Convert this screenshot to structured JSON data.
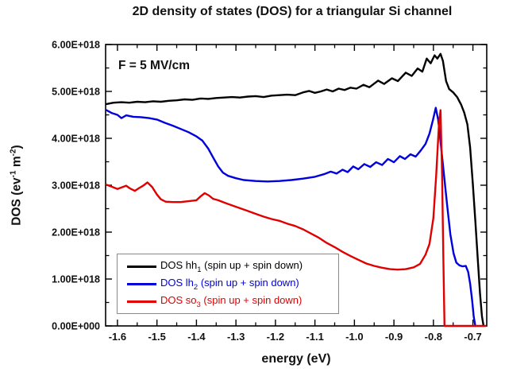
{
  "title": "2D density of states (DOS) for a triangular Si channel",
  "annotation": "F = 5 MV/cm",
  "y_axis_title_parts": {
    "p1": "DOS (ev",
    "sup1": "-1",
    "p2": " m",
    "sup2": "-2",
    "p3": ")"
  },
  "x_axis_title": "energy (eV)",
  "legend": {
    "items": [
      {
        "pre": "DOS hh",
        "sub": "1",
        "post": " (spin up + spin down)",
        "color": "#000000"
      },
      {
        "pre": "DOS lh",
        "sub": "2",
        "post": " (spin up + spin down)",
        "color": "#0000dd"
      },
      {
        "pre": "DOS so",
        "sub": "3",
        "post": " (spin up + spin down)",
        "color": "#e00000"
      }
    ]
  },
  "chart_data": {
    "type": "line",
    "title": "2D density of states (DOS) for a triangular Si channel",
    "xlabel": "energy (eV)",
    "ylabel": "DOS (ev^-1 m^-2)",
    "annotation": "F = 5 MV/cm",
    "grid": false,
    "legend_position": "lower-left-inside",
    "y_unit_scale": "1e18",
    "axes": {
      "x": {
        "min": -1.63,
        "max": -0.665,
        "majors": [
          -1.6,
          -1.5,
          -1.4,
          -1.3,
          -1.2,
          -1.1,
          -1.0,
          -0.9,
          -0.8,
          -0.7
        ],
        "tick_labels": [
          "-1.6",
          "-1.5",
          "-1.4",
          "-1.3",
          "-1.2",
          "-1.1",
          "-1.0",
          "-0.9",
          "-0.8",
          "-0.7"
        ],
        "minors": [
          -1.55,
          -1.45,
          -1.35,
          -1.25,
          -1.15,
          -1.05,
          -0.95,
          -0.85,
          -0.75
        ]
      },
      "y": {
        "min": 0,
        "max": 6,
        "majors": [
          0,
          1,
          2,
          3,
          4,
          5,
          6
        ],
        "tick_labels": [
          "0.00E+000",
          "1.00E+018",
          "2.00E+018",
          "3.00E+018",
          "4.00E+018",
          "5.00E+018",
          "6.00E+018"
        ],
        "minors": [
          0.5,
          1.5,
          2.5,
          3.5,
          4.5,
          5.5
        ]
      }
    },
    "series": [
      {
        "key": "hh1",
        "name": "DOS hh1 (spin up + spin down)",
        "color": "#000000",
        "x": [
          -1.628,
          -1.61,
          -1.59,
          -1.57,
          -1.55,
          -1.53,
          -1.51,
          -1.49,
          -1.47,
          -1.45,
          -1.43,
          -1.41,
          -1.39,
          -1.37,
          -1.35,
          -1.33,
          -1.31,
          -1.29,
          -1.27,
          -1.25,
          -1.23,
          -1.21,
          -1.19,
          -1.17,
          -1.15,
          -1.13,
          -1.115,
          -1.1,
          -1.085,
          -1.07,
          -1.055,
          -1.04,
          -1.025,
          -1.01,
          -0.995,
          -0.977,
          -0.962,
          -0.94,
          -0.925,
          -0.905,
          -0.89,
          -0.87,
          -0.855,
          -0.84,
          -0.828,
          -0.817,
          -0.807,
          -0.797,
          -0.79,
          -0.782,
          -0.776,
          -0.768,
          -0.76,
          -0.75,
          -0.74,
          -0.73,
          -0.722,
          -0.714,
          -0.707,
          -0.7,
          -0.694,
          -0.688,
          -0.682,
          -0.677,
          -0.673
        ],
        "y": [
          4.73,
          4.76,
          4.77,
          4.76,
          4.78,
          4.77,
          4.79,
          4.78,
          4.8,
          4.81,
          4.83,
          4.82,
          4.85,
          4.84,
          4.86,
          4.87,
          4.88,
          4.87,
          4.89,
          4.9,
          4.88,
          4.91,
          4.92,
          4.93,
          4.92,
          4.98,
          5.01,
          4.97,
          5.0,
          5.04,
          5.0,
          5.06,
          5.03,
          5.08,
          5.06,
          5.14,
          5.09,
          5.23,
          5.16,
          5.28,
          5.22,
          5.4,
          5.33,
          5.49,
          5.42,
          5.7,
          5.6,
          5.77,
          5.7,
          5.8,
          5.65,
          5.22,
          5.05,
          4.98,
          4.88,
          4.72,
          4.55,
          4.3,
          3.8,
          3.0,
          2.25,
          1.45,
          0.7,
          0.2,
          0.0
        ]
      },
      {
        "key": "lh2",
        "name": "DOS lh2 (spin up + spin down)",
        "color": "#0000dd",
        "x": [
          -1.628,
          -1.615,
          -1.6,
          -1.59,
          -1.578,
          -1.56,
          -1.54,
          -1.52,
          -1.5,
          -1.48,
          -1.46,
          -1.44,
          -1.42,
          -1.4,
          -1.385,
          -1.37,
          -1.357,
          -1.345,
          -1.333,
          -1.32,
          -1.3,
          -1.28,
          -1.25,
          -1.22,
          -1.19,
          -1.16,
          -1.13,
          -1.1,
          -1.075,
          -1.06,
          -1.045,
          -1.03,
          -1.017,
          -1.003,
          -0.99,
          -0.975,
          -0.96,
          -0.945,
          -0.93,
          -0.915,
          -0.9,
          -0.885,
          -0.872,
          -0.858,
          -0.845,
          -0.832,
          -0.82,
          -0.81,
          -0.801,
          -0.794,
          -0.788,
          -0.781,
          -0.773,
          -0.765,
          -0.757,
          -0.749,
          -0.742,
          -0.734,
          -0.726,
          -0.718,
          -0.712,
          -0.707,
          -0.702,
          -0.698,
          -0.694
        ],
        "y": [
          4.6,
          4.54,
          4.5,
          4.43,
          4.49,
          4.46,
          4.45,
          4.43,
          4.4,
          4.33,
          4.27,
          4.2,
          4.13,
          4.04,
          3.95,
          3.78,
          3.58,
          3.4,
          3.27,
          3.2,
          3.15,
          3.11,
          3.09,
          3.08,
          3.09,
          3.11,
          3.14,
          3.18,
          3.24,
          3.29,
          3.25,
          3.33,
          3.28,
          3.4,
          3.34,
          3.45,
          3.39,
          3.49,
          3.43,
          3.56,
          3.49,
          3.62,
          3.56,
          3.66,
          3.61,
          3.74,
          3.88,
          4.1,
          4.4,
          4.65,
          4.4,
          3.85,
          3.2,
          2.55,
          1.95,
          1.55,
          1.35,
          1.29,
          1.27,
          1.28,
          1.15,
          0.9,
          0.55,
          0.2,
          0.0
        ]
      },
      {
        "key": "so3",
        "name": "DOS so3 (spin up + spin down)",
        "color": "#e00000",
        "x": [
          -1.628,
          -1.615,
          -1.6,
          -1.59,
          -1.578,
          -1.568,
          -1.556,
          -1.545,
          -1.535,
          -1.524,
          -1.512,
          -1.5,
          -1.49,
          -1.478,
          -1.46,
          -1.44,
          -1.42,
          -1.4,
          -1.39,
          -1.379,
          -1.368,
          -1.358,
          -1.345,
          -1.33,
          -1.31,
          -1.29,
          -1.27,
          -1.25,
          -1.23,
          -1.21,
          -1.19,
          -1.17,
          -1.15,
          -1.13,
          -1.11,
          -1.09,
          -1.07,
          -1.05,
          -1.03,
          -1.01,
          -0.99,
          -0.97,
          -0.95,
          -0.93,
          -0.91,
          -0.89,
          -0.87,
          -0.85,
          -0.834,
          -0.82,
          -0.81,
          -0.8,
          -0.793,
          -0.786,
          -0.782,
          -0.778,
          -0.775,
          -0.772,
          -0.7,
          -0.668
        ],
        "y": [
          3.01,
          2.97,
          2.92,
          2.95,
          2.99,
          2.93,
          2.88,
          2.94,
          2.99,
          3.06,
          2.96,
          2.8,
          2.7,
          2.65,
          2.64,
          2.64,
          2.66,
          2.68,
          2.76,
          2.83,
          2.78,
          2.71,
          2.68,
          2.63,
          2.57,
          2.51,
          2.45,
          2.39,
          2.33,
          2.28,
          2.24,
          2.18,
          2.13,
          2.06,
          1.97,
          1.88,
          1.77,
          1.68,
          1.58,
          1.49,
          1.41,
          1.33,
          1.28,
          1.24,
          1.21,
          1.2,
          1.21,
          1.25,
          1.32,
          1.52,
          1.75,
          2.3,
          3.2,
          4.3,
          4.6,
          3.2,
          1.5,
          0.0,
          0.0,
          0.0
        ]
      }
    ]
  }
}
